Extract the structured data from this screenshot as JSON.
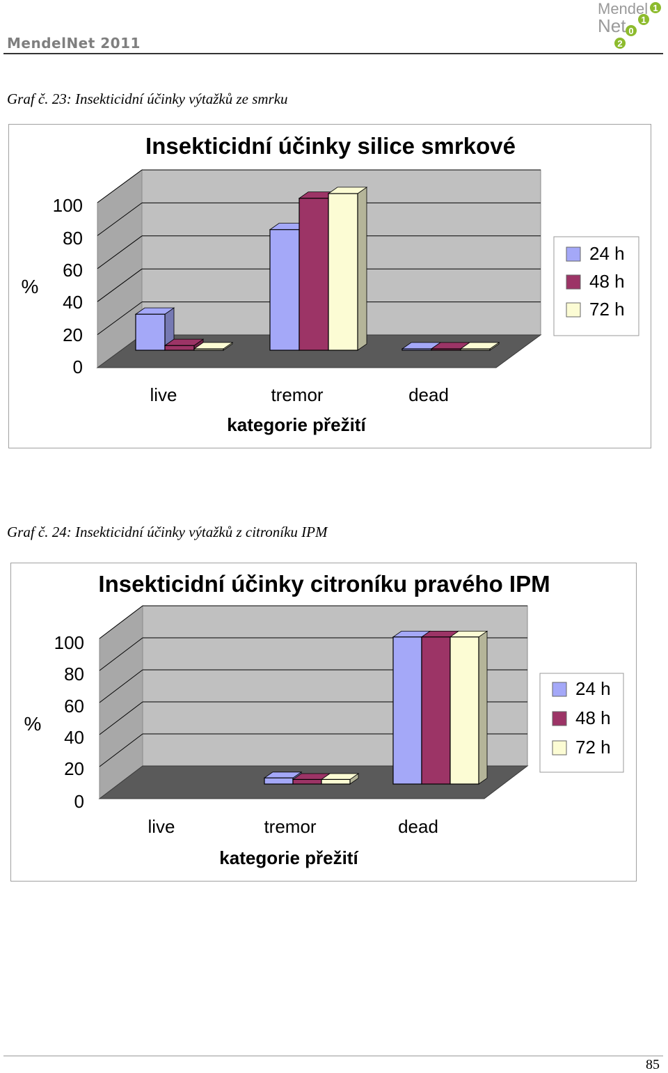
{
  "header": {
    "left": "MendelNet 2011",
    "logo_text": [
      "Mendel",
      "Net",
      "2",
      "0",
      "1",
      "1"
    ]
  },
  "captions": {
    "c1": "Graf č. 23: Insekticidní účinky výtažků ze smrku",
    "c2": "Graf č. 24: Insekticidní účinky výtažků z citroníku IPM"
  },
  "colors": {
    "s24": "#a4a8f8",
    "s48": "#9c3466",
    "s72": "#fcfcd4",
    "wall": "#c0c0c0",
    "floor": "#5a5a5a"
  },
  "chart_data": [
    {
      "type": "bar",
      "title": "Insekticidní účinky silice smrkové",
      "ylabel": "%",
      "xlabel": "kategorie přežití",
      "categories": [
        "live",
        "tremor",
        "dead"
      ],
      "yticks": [
        "0",
        "20",
        "40",
        "60",
        "80",
        "100"
      ],
      "ylim": [
        0,
        100
      ],
      "legend_position": "right",
      "series": [
        {
          "name": "24 h",
          "values": [
            23,
            77,
            0
          ]
        },
        {
          "name": "48 h",
          "values": [
            3,
            97,
            0
          ]
        },
        {
          "name": "72 h",
          "values": [
            0,
            100,
            0
          ]
        }
      ]
    },
    {
      "type": "bar",
      "title": "Insekticidní účinky citroníku pravého IPM",
      "ylabel": "%",
      "xlabel": "kategorie přežití",
      "categories": [
        "live",
        "tremor",
        "dead"
      ],
      "yticks": [
        "0",
        "20",
        "40",
        "60",
        "80",
        "100"
      ],
      "ylim": [
        0,
        100
      ],
      "legend_position": "right",
      "series": [
        {
          "name": "24 h",
          "values": [
            0,
            4,
            96
          ]
        },
        {
          "name": "48 h",
          "values": [
            0,
            3,
            96
          ]
        },
        {
          "name": "72 h",
          "values": [
            0,
            3,
            96
          ]
        }
      ]
    }
  ],
  "page": {
    "number": "85"
  }
}
